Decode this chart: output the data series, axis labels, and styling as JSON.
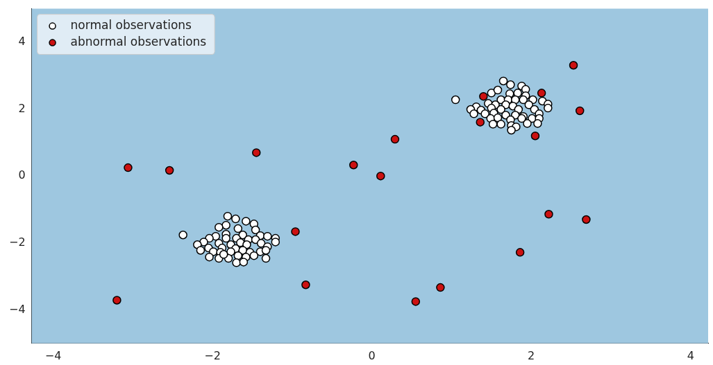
{
  "chart_data": {
    "type": "scatter",
    "xlim": [
      -4.27,
      4.22
    ],
    "ylim": [
      -5,
      5
    ],
    "xticks": [
      -4,
      -2,
      0,
      2,
      4
    ],
    "yticks": [
      -4,
      -2,
      0,
      2,
      4
    ],
    "legend": "top left",
    "marker": "circle",
    "series": [
      {
        "name": "normal observations",
        "color": "#ffffff",
        "x": [
          -1.81,
          -1.71,
          -1.58,
          -1.48,
          -1.83,
          -1.92,
          -1.68,
          -1.46,
          -2.37,
          -1.83,
          -1.62,
          -1.4,
          -1.31,
          -1.21,
          -1.96,
          -2.04,
          -1.83,
          -1.7,
          -1.55,
          -1.46,
          -2.11,
          -2.19,
          -1.92,
          -1.77,
          -1.65,
          -1.57,
          -1.39,
          -1.21,
          -2.05,
          -2.15,
          -1.88,
          -1.71,
          -1.62,
          -1.31,
          -1.99,
          -1.9,
          -1.77,
          -1.53,
          -1.4,
          -1.33,
          -2.04,
          -1.92,
          -1.8,
          -1.68,
          -1.58,
          -1.48,
          -1.33,
          -1.7,
          -1.61,
          -1.86,
          1.65,
          1.74,
          1.88,
          1.93,
          1.05,
          1.5,
          1.58,
          1.73,
          1.83,
          1.93,
          1.62,
          1.71,
          1.8,
          1.9,
          2.02,
          2.14,
          1.46,
          1.55,
          1.68,
          1.77,
          1.97,
          2.21,
          1.31,
          1.24,
          1.37,
          1.5,
          1.62,
          1.84,
          2.04,
          2.21,
          1.28,
          1.42,
          1.53,
          1.68,
          1.8,
          1.9,
          2.1,
          1.49,
          1.58,
          1.74,
          1.88,
          2.01,
          2.1,
          1.52,
          1.62,
          1.75,
          1.81,
          1.95,
          2.08,
          1.75
        ],
        "values": [
          -1.2,
          -1.28,
          -1.35,
          -1.43,
          -1.47,
          -1.53,
          -1.57,
          -1.61,
          -1.76,
          -1.74,
          -1.76,
          -1.78,
          -1.8,
          -1.86,
          -1.8,
          -1.86,
          -1.86,
          -1.86,
          -1.9,
          -1.9,
          -1.97,
          -2.05,
          -2.01,
          -2.05,
          -1.99,
          -2.05,
          -2.01,
          -1.97,
          -2.15,
          -2.22,
          -2.15,
          -2.17,
          -2.22,
          -2.11,
          -2.26,
          -2.28,
          -2.26,
          -2.28,
          -2.26,
          -2.22,
          -2.42,
          -2.46,
          -2.46,
          -2.38,
          -2.42,
          -2.38,
          -2.46,
          -2.59,
          -2.57,
          -2.34,
          2.84,
          2.73,
          2.69,
          2.59,
          2.28,
          2.48,
          2.57,
          2.46,
          2.48,
          2.4,
          2.28,
          2.28,
          2.28,
          2.28,
          2.28,
          2.24,
          2.17,
          2.13,
          2.13,
          2.09,
          2.13,
          2.15,
          2.07,
          1.99,
          1.97,
          2.03,
          1.99,
          1.99,
          1.99,
          2.03,
          1.86,
          1.86,
          1.88,
          1.82,
          1.82,
          1.78,
          1.86,
          1.72,
          1.74,
          1.68,
          1.72,
          1.72,
          1.72,
          1.55,
          1.55,
          1.51,
          1.47,
          1.57,
          1.57,
          1.37
        ]
      },
      {
        "name": "abnormal observations",
        "color": "#cc1111",
        "x": [
          2.53,
          2.13,
          1.4,
          2.61,
          1.36,
          2.05,
          0.29,
          -1.45,
          -0.23,
          0.11,
          -3.06,
          -2.54,
          -0.96,
          2.22,
          2.69,
          1.86,
          -0.83,
          -3.2,
          0.86,
          0.55
        ],
        "values": [
          3.31,
          2.48,
          2.38,
          1.95,
          1.61,
          1.2,
          1.1,
          0.7,
          0.33,
          0.0,
          0.25,
          0.17,
          -1.66,
          -1.14,
          -1.3,
          -2.28,
          -3.25,
          -3.71,
          -3.33,
          -3.75
        ]
      }
    ]
  }
}
